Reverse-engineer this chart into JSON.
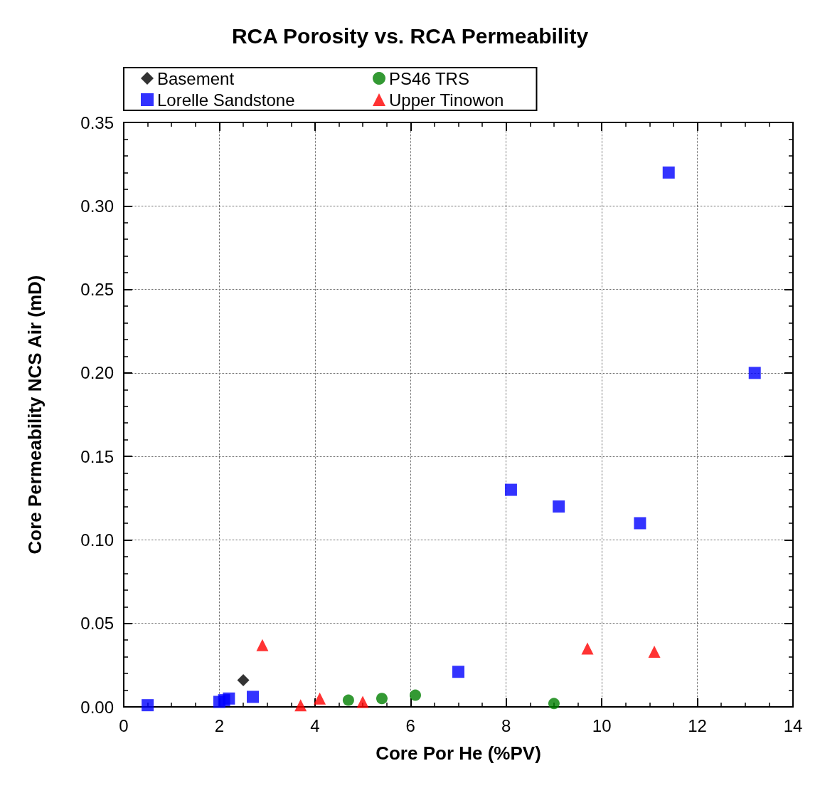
{
  "chart_data": {
    "type": "scatter",
    "title": "RCA Porosity vs. RCA Permeability",
    "xlabel": "Core Por He (%PV)",
    "ylabel": "Core Permeability NCS Air (mD)",
    "xlim": [
      0,
      14
    ],
    "xticks": [
      0,
      2,
      4,
      6,
      8,
      10,
      12,
      14
    ],
    "ylim": [
      0,
      0.35
    ],
    "yticks": [
      {
        "value": 0,
        "label": "0.00"
      },
      {
        "value": 0.05,
        "label": "0.05"
      },
      {
        "value": 0.1,
        "label": "0.10"
      },
      {
        "value": 0.15,
        "label": "0.15"
      },
      {
        "value": 0.2,
        "label": "0.20"
      },
      {
        "value": 0.25,
        "label": "0.25"
      },
      {
        "value": 0.3,
        "label": "0.30"
      },
      {
        "value": 0.35,
        "label": "0.35"
      }
    ],
    "grid": true,
    "legend": "top",
    "series": [
      {
        "name": "Basement",
        "color": "#000000",
        "marker": "diamond",
        "x": [
          2.5
        ],
        "values": [
          0.016
        ]
      },
      {
        "name": "PS46 TRS",
        "color": "#008000",
        "marker": "circle",
        "x": [
          4.7,
          5.4,
          6.1,
          9.0
        ],
        "values": [
          0.004,
          0.005,
          0.007,
          0.002
        ]
      },
      {
        "name": "Lorelle Sandstone",
        "color": "#0000ff",
        "marker": "square",
        "x": [
          0.5,
          2.0,
          2.1,
          2.2,
          2.7,
          7.0,
          8.1,
          9.1,
          10.8,
          11.4,
          13.2
        ],
        "values": [
          0.001,
          0.003,
          0.004,
          0.005,
          0.006,
          0.021,
          0.13,
          0.12,
          0.11,
          0.32,
          0.2
        ]
      },
      {
        "name": "Upper Tinowon",
        "color": "#ff0000",
        "marker": "triangle",
        "x": [
          2.9,
          3.7,
          4.1,
          5.0,
          9.7,
          11.1
        ],
        "values": [
          0.037,
          0.001,
          0.005,
          0.003,
          0.035,
          0.033
        ]
      }
    ]
  }
}
